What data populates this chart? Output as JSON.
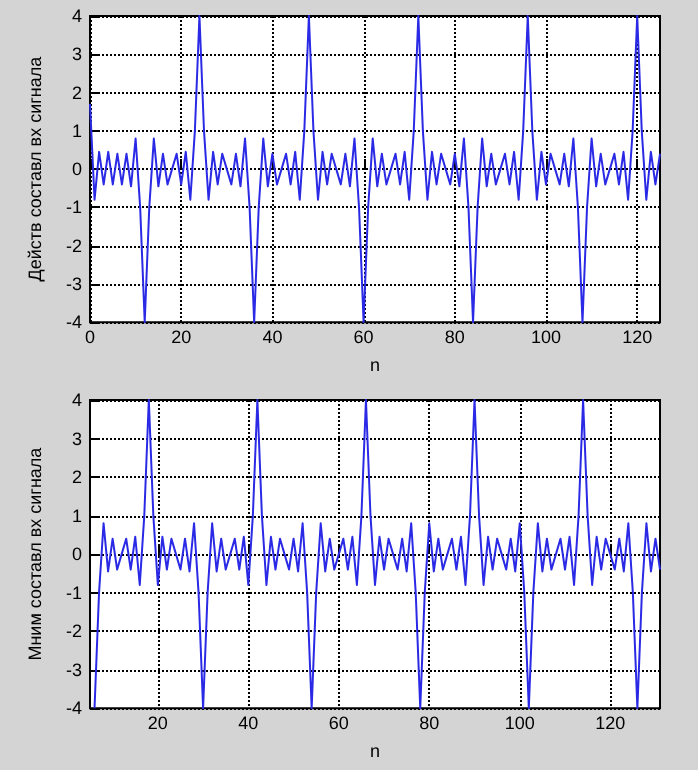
{
  "chart_data": [
    {
      "type": "line",
      "xlabel": "n",
      "ylabel": "Действ составл вх сигнала",
      "xlim": [
        0,
        125
      ],
      "ylim": [
        -4,
        4
      ],
      "xticks": [
        0,
        20,
        40,
        60,
        80,
        100,
        120
      ],
      "yticks": [
        -4,
        -3,
        -2,
        -1,
        0,
        1,
        2,
        3,
        4
      ],
      "grid": true,
      "x": [
        0,
        1,
        2,
        3,
        4,
        5,
        6,
        7,
        8,
        9,
        10,
        11,
        12,
        13,
        14,
        15,
        16,
        17,
        18,
        19,
        20,
        21,
        22,
        23,
        24,
        25,
        26,
        27,
        28,
        29,
        30,
        31,
        32,
        33,
        34,
        35,
        36,
        37,
        38,
        39,
        40,
        41,
        42,
        43,
        44,
        45,
        46,
        47,
        48,
        49,
        50,
        51,
        52,
        53,
        54,
        55,
        56,
        57,
        58,
        59,
        60,
        61,
        62,
        63,
        64,
        65,
        66,
        67,
        68,
        69,
        70,
        71,
        72,
        73,
        74,
        75,
        76,
        77,
        78,
        79,
        80,
        81,
        82,
        83,
        84,
        85,
        86,
        87,
        88,
        89,
        90,
        91,
        92,
        93,
        94,
        95,
        96,
        97,
        98,
        99,
        100,
        101,
        102,
        103,
        104,
        105,
        106,
        107,
        108,
        109,
        110,
        111,
        112,
        113,
        114,
        115,
        116,
        117,
        118,
        119,
        120,
        121,
        122,
        123,
        124,
        125
      ],
      "series": [
        {
          "color": "#2a2ae6",
          "values": [
            1.7,
            -0.8,
            0.45,
            -0.4,
            0.45,
            -0.4,
            0.4,
            -0.4,
            0.4,
            -0.45,
            0.8,
            -1,
            -4,
            -1,
            0.8,
            -0.45,
            0.4,
            -0.4,
            0,
            0.4,
            -0.4,
            0.45,
            -0.8,
            1,
            4,
            1,
            -0.8,
            0.45,
            -0.4,
            0.4,
            0,
            -0.4,
            0.4,
            -0.45,
            0.8,
            -1,
            -4,
            -1,
            0.8,
            -0.45,
            0.4,
            -0.4,
            0,
            0.4,
            -0.4,
            0.45,
            -0.8,
            1,
            4,
            1,
            -0.8,
            0.45,
            -0.4,
            0.4,
            0,
            -0.4,
            0.4,
            -0.45,
            0.8,
            -1,
            -4,
            -1,
            0.8,
            -0.45,
            0.4,
            -0.4,
            0,
            0.4,
            -0.4,
            0.45,
            -0.8,
            1,
            4,
            1,
            -0.8,
            0.45,
            -0.4,
            0.4,
            0,
            -0.4,
            0.4,
            -0.45,
            0.8,
            -1,
            -4,
            -1,
            0.8,
            -0.45,
            0.4,
            -0.4,
            0,
            0.4,
            -0.4,
            0.45,
            -0.8,
            1,
            4,
            1,
            -0.8,
            0.45,
            -0.4,
            0.4,
            0,
            -0.4,
            0.4,
            -0.45,
            0.8,
            -1,
            -4,
            -1,
            0.8,
            -0.45,
            0.4,
            -0.4,
            0,
            0.4,
            -0.4,
            0.45,
            -0.8,
            1,
            4,
            1,
            -0.8,
            0.45,
            -0.4,
            0.4
          ]
        }
      ]
    },
    {
      "type": "line",
      "xlabel": "n",
      "ylabel": "Мним составл вх сигнала",
      "xlim": [
        5,
        131
      ],
      "ylim": [
        -4,
        4
      ],
      "xticks": [
        20,
        40,
        60,
        80,
        100,
        120
      ],
      "yticks": [
        -4,
        -3,
        -2,
        -1,
        0,
        1,
        2,
        3,
        4
      ],
      "grid": true,
      "x": [
        6,
        7,
        8,
        9,
        10,
        11,
        12,
        13,
        14,
        15,
        16,
        17,
        18,
        19,
        20,
        21,
        22,
        23,
        24,
        25,
        26,
        27,
        28,
        29,
        30,
        31,
        32,
        33,
        34,
        35,
        36,
        37,
        38,
        39,
        40,
        41,
        42,
        43,
        44,
        45,
        46,
        47,
        48,
        49,
        50,
        51,
        52,
        53,
        54,
        55,
        56,
        57,
        58,
        59,
        60,
        61,
        62,
        63,
        64,
        65,
        66,
        67,
        68,
        69,
        70,
        71,
        72,
        73,
        74,
        75,
        76,
        77,
        78,
        79,
        80,
        81,
        82,
        83,
        84,
        85,
        86,
        87,
        88,
        89,
        90,
        91,
        92,
        93,
        94,
        95,
        96,
        97,
        98,
        99,
        100,
        101,
        102,
        103,
        104,
        105,
        106,
        107,
        108,
        109,
        110,
        111,
        112,
        113,
        114,
        115,
        116,
        117,
        118,
        119,
        120,
        121,
        122,
        123,
        124,
        125,
        126,
        127,
        128,
        129,
        130,
        131
      ],
      "series": [
        {
          "color": "#2a2ae6",
          "values": [
            -4,
            -1,
            0.8,
            -0.45,
            0.4,
            -0.4,
            0,
            0.4,
            -0.4,
            0.45,
            -0.8,
            1,
            4,
            1,
            -0.8,
            0.45,
            -0.4,
            0.4,
            0,
            -0.4,
            0.4,
            -0.45,
            0.8,
            -1,
            -4,
            -1,
            0.8,
            -0.45,
            0.4,
            -0.4,
            0,
            0.4,
            -0.4,
            0.45,
            -0.8,
            1,
            4,
            1,
            -0.8,
            0.45,
            -0.4,
            0.4,
            0,
            -0.4,
            0.4,
            -0.45,
            0.8,
            -1,
            -4,
            -1,
            0.8,
            -0.45,
            0.4,
            -0.4,
            0,
            0.4,
            -0.4,
            0.45,
            -0.8,
            1,
            4,
            1,
            -0.8,
            0.45,
            -0.4,
            0.4,
            0,
            -0.4,
            0.4,
            -0.45,
            0.8,
            -1,
            -4,
            -1,
            0.8,
            -0.45,
            0.4,
            -0.4,
            0,
            0.4,
            -0.4,
            0.45,
            -0.8,
            1,
            4,
            1,
            -0.8,
            0.45,
            -0.4,
            0.4,
            0,
            -0.4,
            0.4,
            -0.45,
            0.8,
            -1,
            -4,
            -1,
            0.8,
            -0.45,
            0.4,
            -0.4,
            0,
            0.4,
            -0.4,
            0.45,
            -0.8,
            1,
            4,
            1,
            -0.8,
            0.45,
            -0.4,
            0.4,
            0,
            -0.4,
            0.4,
            -0.45,
            0.8,
            -1,
            -4,
            -1,
            0.8,
            -0.45,
            0.4,
            -0.4
          ]
        }
      ]
    }
  ]
}
